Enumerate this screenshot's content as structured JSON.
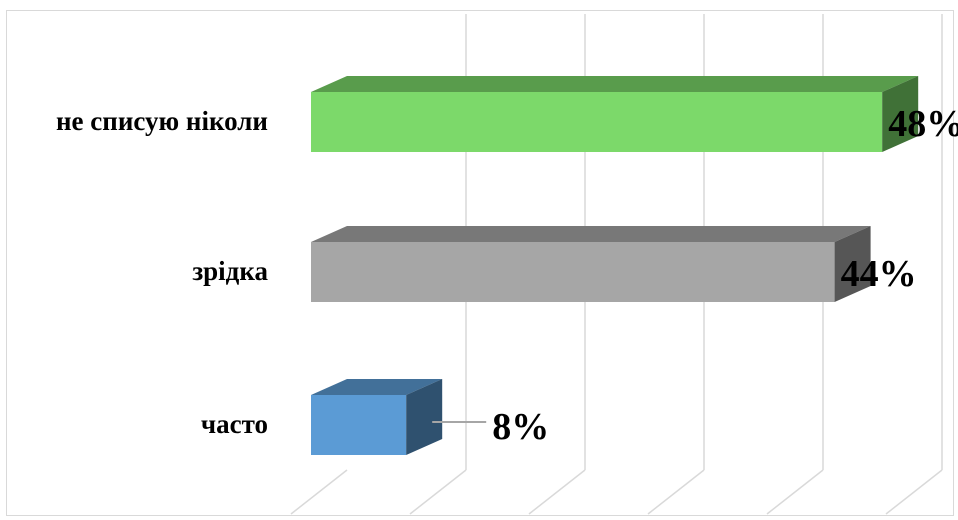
{
  "chart_data": {
    "type": "bar",
    "orientation": "horizontal",
    "style": "3d",
    "categories": [
      "не списую ніколи",
      "зрідка",
      "часто"
    ],
    "values": [
      48,
      44,
      8
    ],
    "data_labels": [
      "48%",
      "44%",
      "8%"
    ],
    "colors": [
      "#7cd96a",
      "#a6a6a6",
      "#5b9bd5"
    ],
    "xlim": [
      0,
      50
    ],
    "grid": true,
    "legend": "none",
    "title": ""
  }
}
